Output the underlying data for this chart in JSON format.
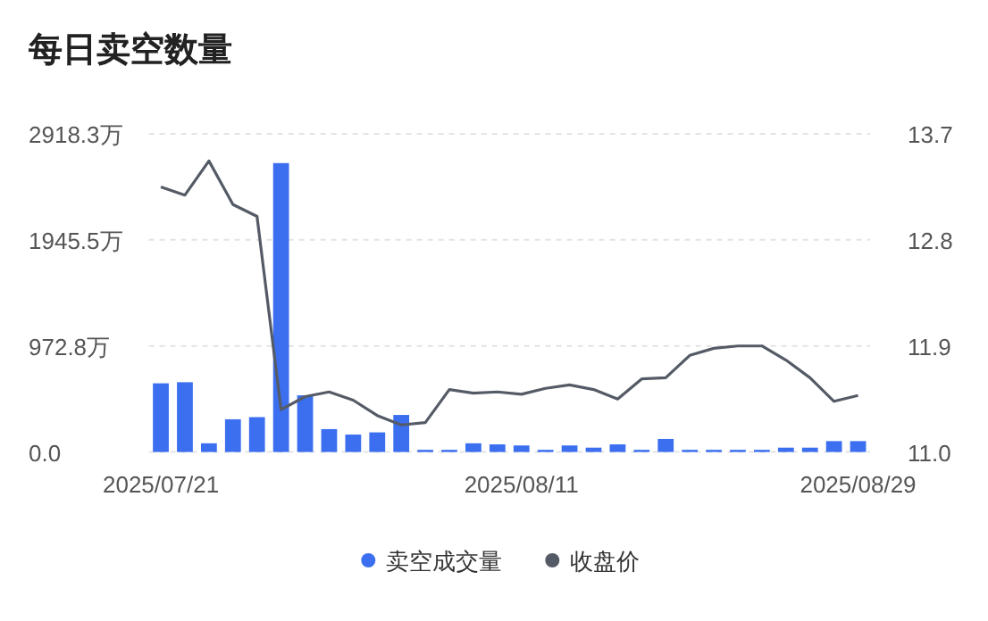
{
  "chart_data": {
    "type": "bar",
    "title": "每日卖空数量",
    "categories": [
      "2025/07/21",
      null,
      null,
      null,
      null,
      null,
      null,
      null,
      null,
      null,
      null,
      null,
      null,
      null,
      null,
      "2025/08/11",
      null,
      null,
      null,
      null,
      null,
      null,
      null,
      null,
      null,
      null,
      null,
      null,
      null,
      "2025/08/29"
    ],
    "series": [
      {
        "name": "卖空成交量",
        "color": "#3b6ff0",
        "values": [
          630,
          640,
          80,
          300,
          320,
          2650,
          520,
          210,
          160,
          180,
          340,
          20,
          20,
          80,
          70,
          60,
          20,
          60,
          40,
          70,
          20,
          120,
          20,
          20,
          20,
          20,
          40,
          40,
          100,
          100
        ]
      },
      {
        "name": "收盘价",
        "type": "line",
        "axis": "y2",
        "color": "#555b66",
        "values": [
          13.25,
          13.18,
          13.47,
          13.1,
          13.0,
          11.36,
          11.47,
          11.51,
          11.44,
          11.31,
          11.23,
          11.25,
          11.53,
          11.5,
          11.51,
          11.49,
          11.54,
          11.57,
          11.53,
          11.45,
          11.62,
          11.63,
          11.82,
          11.88,
          11.9,
          11.9,
          11.78,
          11.63,
          11.43,
          11.48
        ]
      }
    ],
    "ylim": [
      0,
      2918.3
    ],
    "yticks": [
      {
        "value": 0,
        "label": "0.0"
      },
      {
        "value": 972.8,
        "label": "972.8万"
      },
      {
        "value": 1945.5,
        "label": "1945.5万"
      },
      {
        "value": 2918.3,
        "label": "2918.3万"
      }
    ],
    "y2lim": [
      11,
      13.7
    ],
    "y2ticks": [
      {
        "value": 11,
        "label": "11.0"
      },
      11.9,
      12.8,
      13.7
    ],
    "grid": "y",
    "legend": "bottom"
  }
}
